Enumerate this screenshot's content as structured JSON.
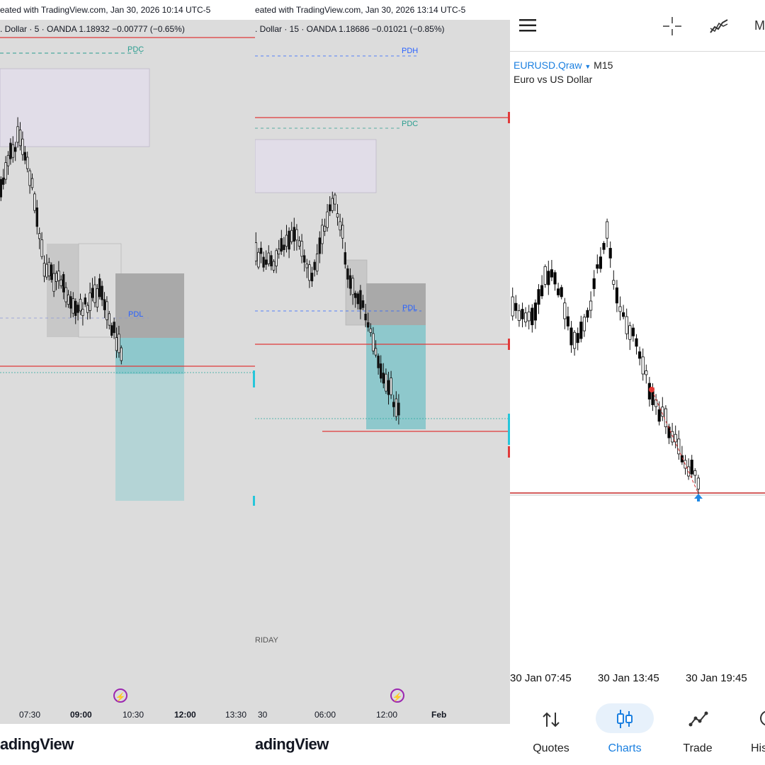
{
  "panel_a": {
    "watermark": "eated with TradingView.com, Jan 30, 2026 10:14 UTC-5",
    "symbol_line": ". Dollar · 5 · OANDA  1.18932  −0.00777 (−0.65%)",
    "labels": {
      "pdc": "PDC",
      "pdl": "PDL"
    },
    "xaxis": [
      "07:30",
      "09:00",
      "10:30",
      "12:00",
      "13:30"
    ],
    "logo": "adingView"
  },
  "panel_b": {
    "watermark": "eated with TradingView.com, Jan 30, 2026 13:14 UTC-5",
    "symbol_line": ". Dollar · 15 · OANDA  1.18686  −0.01021 (−0.85%)",
    "labels": {
      "pdh": "PDH",
      "pdc": "PDC",
      "pdl": "PDL"
    },
    "session_label": "RIDAY",
    "xaxis": [
      "30",
      "06:00",
      "12:00",
      "Feb"
    ],
    "logo": "adingView"
  },
  "panel_c": {
    "toolbar": {
      "menu_icon": "hamburger-menu-icon",
      "crosshair_icon": "crosshair-icon",
      "indicator_icon": "indicator-icon",
      "extra_label": "M"
    },
    "symbol": "EURUSD.Qraw",
    "timeframe": "M15",
    "description": "Euro vs US Dollar",
    "xaxis": [
      "30 Jan 07:45",
      "30 Jan 13:45",
      "30 Jan 19:45"
    ],
    "nav": [
      {
        "label": "Quotes",
        "icon": "quotes-icon",
        "active": false
      },
      {
        "label": "Charts",
        "icon": "charts-icon",
        "active": true
      },
      {
        "label": "Trade",
        "icon": "trade-icon",
        "active": false
      },
      {
        "label": "His",
        "icon": "history-icon",
        "active": false
      }
    ]
  },
  "colors": {
    "chart_bg": "#dcdcdc",
    "red_line": "#e03a3a",
    "teal": "#2a9d8f",
    "blue": "#2962ff",
    "active_nav": "#1a7fe0"
  }
}
